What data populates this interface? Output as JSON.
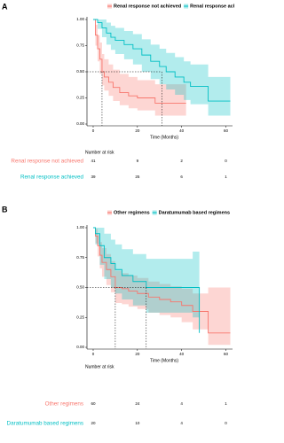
{
  "chart_data": [
    {
      "type": "step",
      "panel_label": "A",
      "x_label": "Time (Months)",
      "xlim": [
        -2,
        63
      ],
      "xticks": [
        0,
        20,
        40,
        60
      ],
      "ylim": [
        0,
        1
      ],
      "yticks": [
        {
          "value": 0,
          "label": "0.00"
        },
        {
          "value": 0.25,
          "label": "0.25"
        },
        {
          "value": 0.5,
          "label": "0.50"
        },
        {
          "value": 0.75,
          "label": "0.75"
        },
        {
          "value": 1,
          "label": "1.00"
        }
      ],
      "median_level": 0.5,
      "series": [
        {
          "name": "Renal response not achieved",
          "color": "#f8766d",
          "median": 4,
          "x": [
            0,
            1,
            2,
            3,
            4,
            5,
            7,
            9,
            12,
            16,
            20,
            28,
            42
          ],
          "values": [
            1,
            0.85,
            0.72,
            0.62,
            0.5,
            0.45,
            0.4,
            0.35,
            0.3,
            0.27,
            0.25,
            0.2,
            0.2
          ],
          "ci_upper": [
            1,
            0.95,
            0.85,
            0.78,
            0.67,
            0.62,
            0.57,
            0.52,
            0.48,
            0.45,
            0.42,
            0.38,
            0.38
          ],
          "ci_lower": [
            1,
            0.75,
            0.6,
            0.48,
            0.37,
            0.32,
            0.27,
            0.22,
            0.18,
            0.15,
            0.13,
            0.08,
            0.05
          ]
        },
        {
          "name": "Renal response achieved",
          "color": "#00bfc4",
          "median": 31,
          "x": [
            0,
            2,
            4,
            6,
            8,
            10,
            14,
            18,
            22,
            26,
            30,
            33,
            37,
            41,
            44,
            52,
            62
          ],
          "values": [
            1,
            0.97,
            0.92,
            0.87,
            0.83,
            0.8,
            0.76,
            0.72,
            0.66,
            0.6,
            0.55,
            0.5,
            0.45,
            0.4,
            0.36,
            0.22,
            0.22
          ],
          "ci_upper": [
            1,
            1,
            1,
            0.97,
            0.94,
            0.92,
            0.89,
            0.86,
            0.81,
            0.76,
            0.72,
            0.68,
            0.64,
            0.6,
            0.57,
            0.45,
            0.45
          ],
          "ci_lower": [
            1,
            0.91,
            0.83,
            0.76,
            0.71,
            0.67,
            0.62,
            0.57,
            0.5,
            0.43,
            0.38,
            0.33,
            0.28,
            0.23,
            0.19,
            0.08,
            0.08
          ]
        }
      ],
      "risk_table": {
        "title": "Number at risk",
        "times": [
          0,
          20,
          40,
          60
        ],
        "rows": [
          [
            41,
            9,
            2,
            0
          ],
          [
            39,
            25,
            6,
            1
          ]
        ]
      }
    },
    {
      "type": "step",
      "panel_label": "B",
      "x_label": "Time (Months)",
      "xlim": [
        -2,
        63
      ],
      "xticks": [
        0,
        20,
        40,
        60
      ],
      "ylim": [
        0,
        1
      ],
      "yticks": [
        {
          "value": 0,
          "label": "0.00"
        },
        {
          "value": 0.25,
          "label": "0.25"
        },
        {
          "value": 0.5,
          "label": "0.50"
        },
        {
          "value": 0.75,
          "label": "0.75"
        },
        {
          "value": 1,
          "label": "1.00"
        }
      ],
      "median_level": 0.5,
      "series": [
        {
          "name": "Other regimens",
          "color": "#f8766d",
          "median": 10,
          "x": [
            0,
            1,
            2,
            3,
            4,
            6,
            8,
            10,
            13,
            16,
            20,
            25,
            30,
            35,
            40,
            45,
            52,
            62
          ],
          "values": [
            1,
            0.93,
            0.85,
            0.77,
            0.71,
            0.65,
            0.59,
            0.5,
            0.49,
            0.47,
            0.45,
            0.42,
            0.4,
            0.38,
            0.35,
            0.3,
            0.12,
            0.12
          ],
          "ci_upper": [
            1,
            0.99,
            0.94,
            0.88,
            0.83,
            0.78,
            0.72,
            0.64,
            0.62,
            0.6,
            0.58,
            0.55,
            0.53,
            0.51,
            0.49,
            0.45,
            0.5,
            0.5
          ],
          "ci_lower": [
            1,
            0.87,
            0.76,
            0.66,
            0.59,
            0.52,
            0.46,
            0.37,
            0.36,
            0.34,
            0.32,
            0.29,
            0.27,
            0.25,
            0.21,
            0.15,
            0.02,
            0.02
          ]
        },
        {
          "name": "Daratumumab based regimens",
          "color": "#00bfc4",
          "median": 24,
          "x": [
            0,
            1,
            3,
            5,
            8,
            10,
            13,
            18,
            24,
            38,
            45,
            48
          ],
          "values": [
            1,
            0.95,
            0.85,
            0.75,
            0.7,
            0.65,
            0.6,
            0.55,
            0.5,
            0.5,
            0.5,
            0.12
          ],
          "ci_upper": [
            1,
            1,
            1,
            0.95,
            0.9,
            0.86,
            0.82,
            0.78,
            0.74,
            0.74,
            0.8,
            0.7
          ],
          "ci_lower": [
            1,
            0.86,
            0.69,
            0.57,
            0.5,
            0.45,
            0.4,
            0.35,
            0.29,
            0.29,
            0.25,
            0.02
          ]
        }
      ],
      "risk_table": {
        "title": "Number at risk",
        "times": [
          0,
          20,
          40,
          60
        ],
        "rows": [
          [
            60,
            24,
            4,
            1
          ],
          [
            20,
            10,
            4,
            0
          ]
        ]
      }
    }
  ]
}
